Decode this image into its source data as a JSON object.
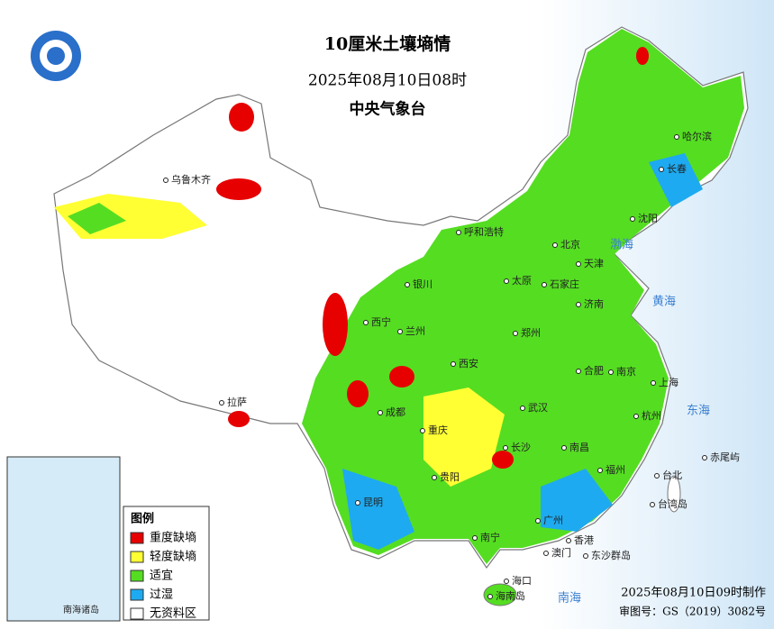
{
  "header": {
    "title": "10厘米土壤墒情",
    "time": "2025年08月10日08时",
    "agency": "中央气象台"
  },
  "legend": {
    "title": "图例",
    "items": [
      {
        "label": "重度缺墒",
        "color": "#e60000"
      },
      {
        "label": "轻度缺墒",
        "color": "#ffff33"
      },
      {
        "label": "适宜",
        "color": "#55dd22"
      },
      {
        "label": "过湿",
        "color": "#1eaaf0"
      },
      {
        "label": "无资料区",
        "color": "#ffffff"
      }
    ]
  },
  "labels": {
    "cities": [
      "乌鲁木齐",
      "呼和浩特",
      "北京",
      "天津",
      "沈阳",
      "长春",
      "哈尔滨",
      "银川",
      "太原",
      "石家庄",
      "济南",
      "西宁",
      "兰州",
      "西安",
      "郑州",
      "合肥",
      "南京",
      "上海",
      "武汉",
      "成都",
      "重庆",
      "长沙",
      "南昌",
      "杭州",
      "拉萨",
      "贵阳",
      "昆明",
      "南宁",
      "广州",
      "福州",
      "台北",
      "香港",
      "澳门",
      "海口",
      "海南岛",
      "台湾岛",
      "赤尾屿",
      "东沙群岛"
    ],
    "seas": [
      "渤海",
      "黄海",
      "东海",
      "南海"
    ]
  },
  "inset": {
    "label": "南海诸岛"
  },
  "footer": {
    "made": "2025年08月10日09时制作",
    "approval": "审图号：GS（2019）3082号"
  }
}
